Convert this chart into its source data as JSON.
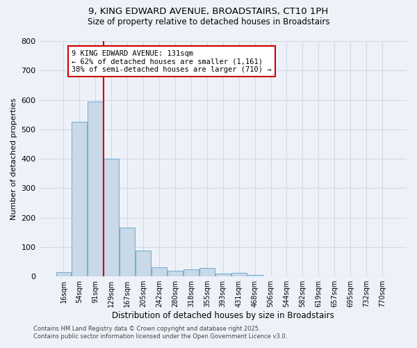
{
  "title1": "9, KING EDWARD AVENUE, BROADSTAIRS, CT10 1PH",
  "title2": "Size of property relative to detached houses in Broadstairs",
  "xlabel": "Distribution of detached houses by size in Broadstairs",
  "ylabel": "Number of detached properties",
  "categories": [
    "16sqm",
    "54sqm",
    "91sqm",
    "129sqm",
    "167sqm",
    "205sqm",
    "242sqm",
    "280sqm",
    "318sqm",
    "355sqm",
    "393sqm",
    "431sqm",
    "468sqm",
    "506sqm",
    "544sqm",
    "582sqm",
    "619sqm",
    "657sqm",
    "695sqm",
    "732sqm",
    "770sqm"
  ],
  "values": [
    15,
    525,
    595,
    400,
    165,
    87,
    32,
    20,
    25,
    28,
    10,
    13,
    5,
    0,
    0,
    0,
    0,
    0,
    0,
    0,
    0
  ],
  "bar_color": "#c9d9e8",
  "bar_edge_color": "#7bafd4",
  "grid_color": "#d0d8e8",
  "bg_color": "#eef2f8",
  "red_line_index": 3,
  "red_line_color": "#cc0000",
  "annotation_line1": "9 KING EDWARD AVENUE: 131sqm",
  "annotation_line2": "← 62% of detached houses are smaller (1,161)",
  "annotation_line3": "38% of semi-detached houses are larger (710) →",
  "annotation_box_color": "#ffffff",
  "annotation_border_color": "#cc0000",
  "ylim": [
    0,
    800
  ],
  "yticks": [
    0,
    100,
    200,
    300,
    400,
    500,
    600,
    700,
    800
  ],
  "footer1": "Contains HM Land Registry data © Crown copyright and database right 2025.",
  "footer2": "Contains public sector information licensed under the Open Government Licence v3.0."
}
